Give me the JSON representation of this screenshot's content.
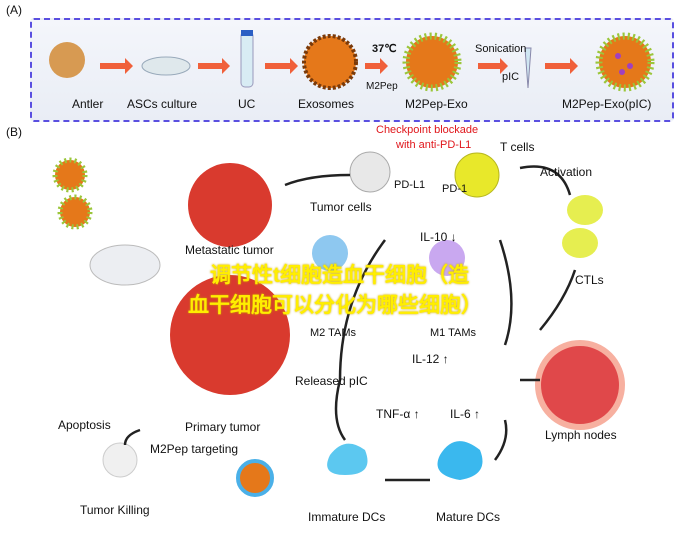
{
  "panel_a": {
    "tag": "(A)",
    "steps": [
      "Antler",
      "ASCs culture",
      "UC",
      "Exosomes",
      "M2Pep-Exo",
      "M2Pep-Exo(pIC)"
    ],
    "temp": "37℃",
    "m2pep": "M2Pep",
    "sonication": "Sonication",
    "pic": "pIC"
  },
  "panel_b": {
    "tag": "(B)",
    "checkpoint": "Checkpoint blockade",
    "checkpoint2": "with anti-PD-L1",
    "tcells": "T cells",
    "pdl1": "PD-L1",
    "pd1": "PD-1",
    "activation": "Activation",
    "tumor_cells": "Tumor cells",
    "metastatic": "Metastatic tumor",
    "il10": "IL-10 ↓",
    "m2": "M2 TAMs",
    "m1": "M1 TAMs",
    "ctls": "CTLs",
    "il12": "IL-12 ↑",
    "released": "Released pIC",
    "tnf": "TNF-α ↑",
    "il6": "IL-6 ↑",
    "primary": "Primary tumor",
    "apoptosis": "Apoptosis",
    "targeting": "M2Pep targeting",
    "lymph": "Lymph nodes",
    "killing": "Tumor Killing",
    "immature": "Immature DCs",
    "mature": "Mature DCs"
  },
  "watermark": [
    "调节性t细胞造血干细胞（造",
    "血干细胞可以分化为哪些细胞）"
  ],
  "colors": {
    "border": "#5a4fe0",
    "arrow": "#f0603a",
    "red_text": "#e0161b"
  }
}
